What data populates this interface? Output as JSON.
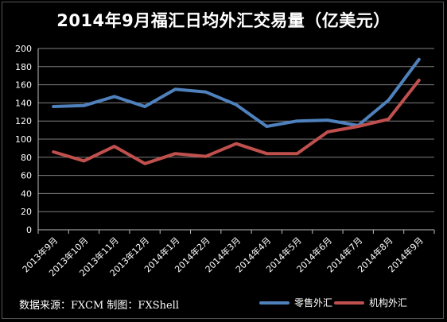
{
  "title": "2014年9月福汇日均外汇交易量（亿美元）",
  "footer": "数据来源：FXCM   制图：FXShell",
  "colors": {
    "retail": "#4F81BD",
    "institutional": "#C0504D",
    "grid": "#7f7f7f",
    "background": "#000000",
    "text": "#ffffff"
  },
  "chart_data": {
    "type": "line",
    "title": "2014年9月福汇日均外汇交易量（亿美元）",
    "xlabel": "",
    "ylabel": "",
    "ylim": [
      0,
      200
    ],
    "yticks": [
      0,
      20,
      40,
      60,
      80,
      100,
      120,
      140,
      160,
      180,
      200
    ],
    "grid": true,
    "legend": "bottom-right",
    "categories": [
      "2013年9月",
      "2013年10月",
      "2013年11月",
      "2013年12月",
      "2014年1月",
      "2014年2月",
      "2014年3月",
      "2014年4月",
      "2014年5月",
      "2014年6月",
      "2014年7月",
      "2014年8月",
      "2014年9月"
    ],
    "series": [
      {
        "name": "零售外汇",
        "color": "#4F81BD",
        "values": [
          136,
          137,
          147,
          136,
          155,
          152,
          138,
          114,
          120,
          121,
          115,
          143,
          188
        ]
      },
      {
        "name": "机构外汇",
        "color": "#C0504D",
        "values": [
          86,
          76,
          92,
          73,
          84,
          81,
          95,
          84,
          84,
          108,
          114,
          122,
          165
        ]
      }
    ]
  }
}
